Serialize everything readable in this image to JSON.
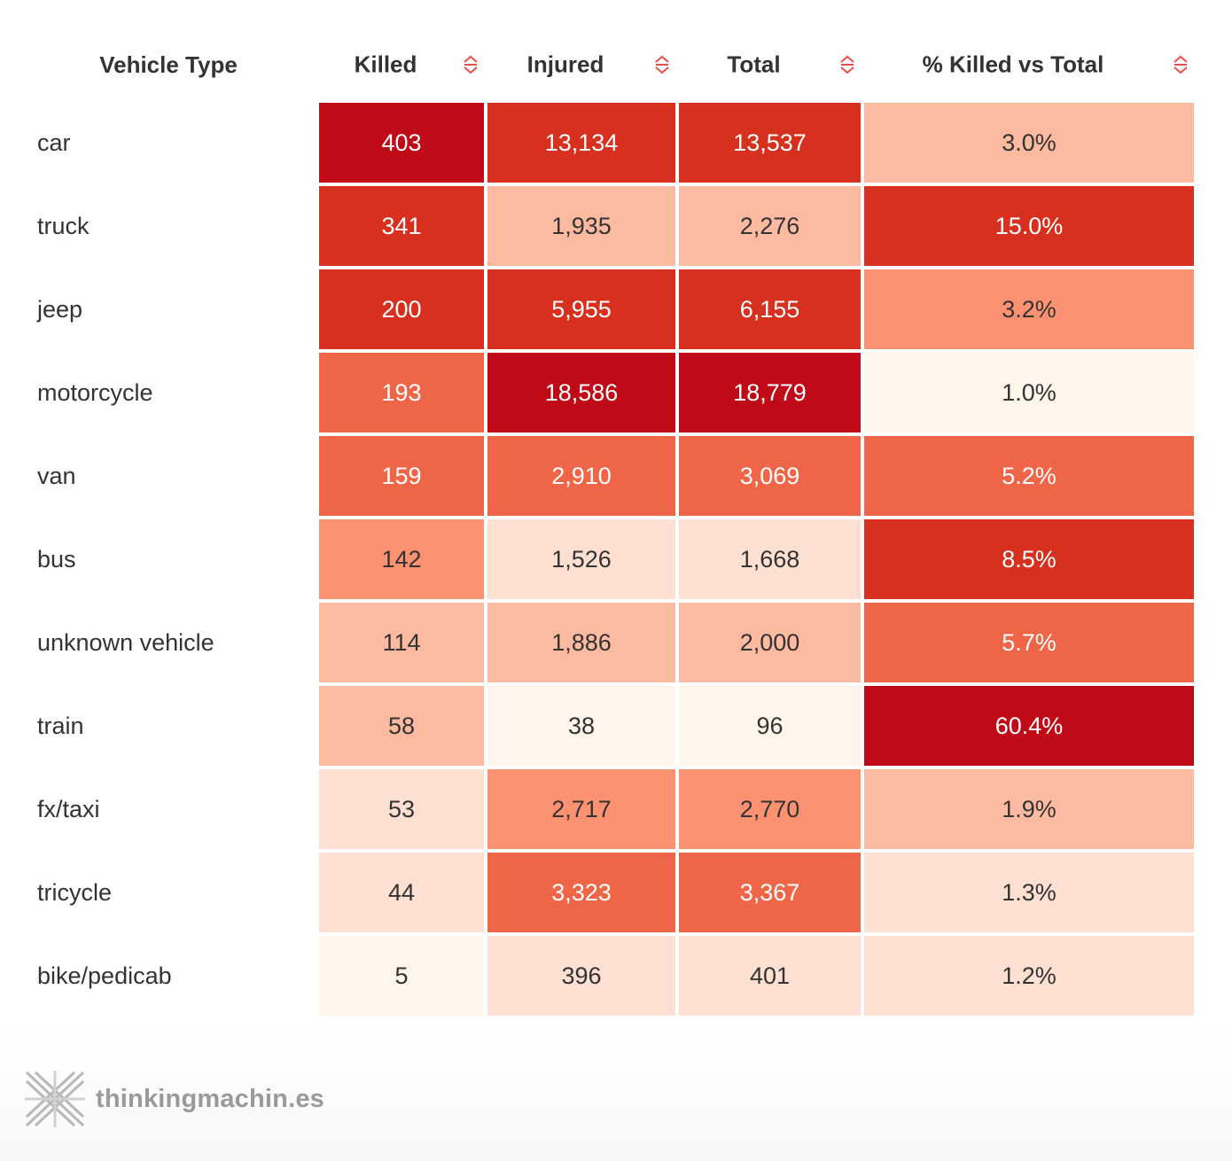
{
  "chart_data": {
    "type": "table",
    "columns": [
      "Vehicle Type",
      "Killed",
      "Injured",
      "Total",
      "% Killed vs Total"
    ],
    "rows": [
      {
        "vehicle": "car",
        "killed": "403",
        "injured": "13,134",
        "total": "13,537",
        "pct": "3.0%"
      },
      {
        "vehicle": "truck",
        "killed": "341",
        "injured": "1,935",
        "total": "2,276",
        "pct": "15.0%"
      },
      {
        "vehicle": "jeep",
        "killed": "200",
        "injured": "5,955",
        "total": "6,155",
        "pct": "3.2%"
      },
      {
        "vehicle": "motorcycle",
        "killed": "193",
        "injured": "18,586",
        "total": "18,779",
        "pct": "1.0%"
      },
      {
        "vehicle": "van",
        "killed": "159",
        "injured": "2,910",
        "total": "3,069",
        "pct": "5.2%"
      },
      {
        "vehicle": "bus",
        "killed": "142",
        "injured": "1,526",
        "total": "1,668",
        "pct": "8.5%"
      },
      {
        "vehicle": "unknown vehicle",
        "killed": "114",
        "injured": "1,886",
        "total": "2,000",
        "pct": "5.7%"
      },
      {
        "vehicle": "train",
        "killed": "58",
        "injured": "38",
        "total": "96",
        "pct": "60.4%"
      },
      {
        "vehicle": "fx/taxi",
        "killed": "53",
        "injured": "2,717",
        "total": "2,770",
        "pct": "1.9%"
      },
      {
        "vehicle": "tricycle",
        "killed": "44",
        "injured": "3,323",
        "total": "3,367",
        "pct": "1.3%"
      },
      {
        "vehicle": "bike/pedicab",
        "killed": "5",
        "injured": "396",
        "total": "401",
        "pct": "1.2%"
      }
    ],
    "colors": {
      "palette": [
        "#fff5eb",
        "#fee0d2",
        "#fcbba1",
        "#fc9272",
        "#ef6548",
        "#d7301f",
        "#c00a17"
      ],
      "sort_icon": "#e8504a",
      "text_dark": "#333333",
      "text_light": "#ffffff"
    }
  },
  "footer": {
    "logo_icon": "crosshatch-logo-icon",
    "brand": "thinkingmachin.es"
  }
}
